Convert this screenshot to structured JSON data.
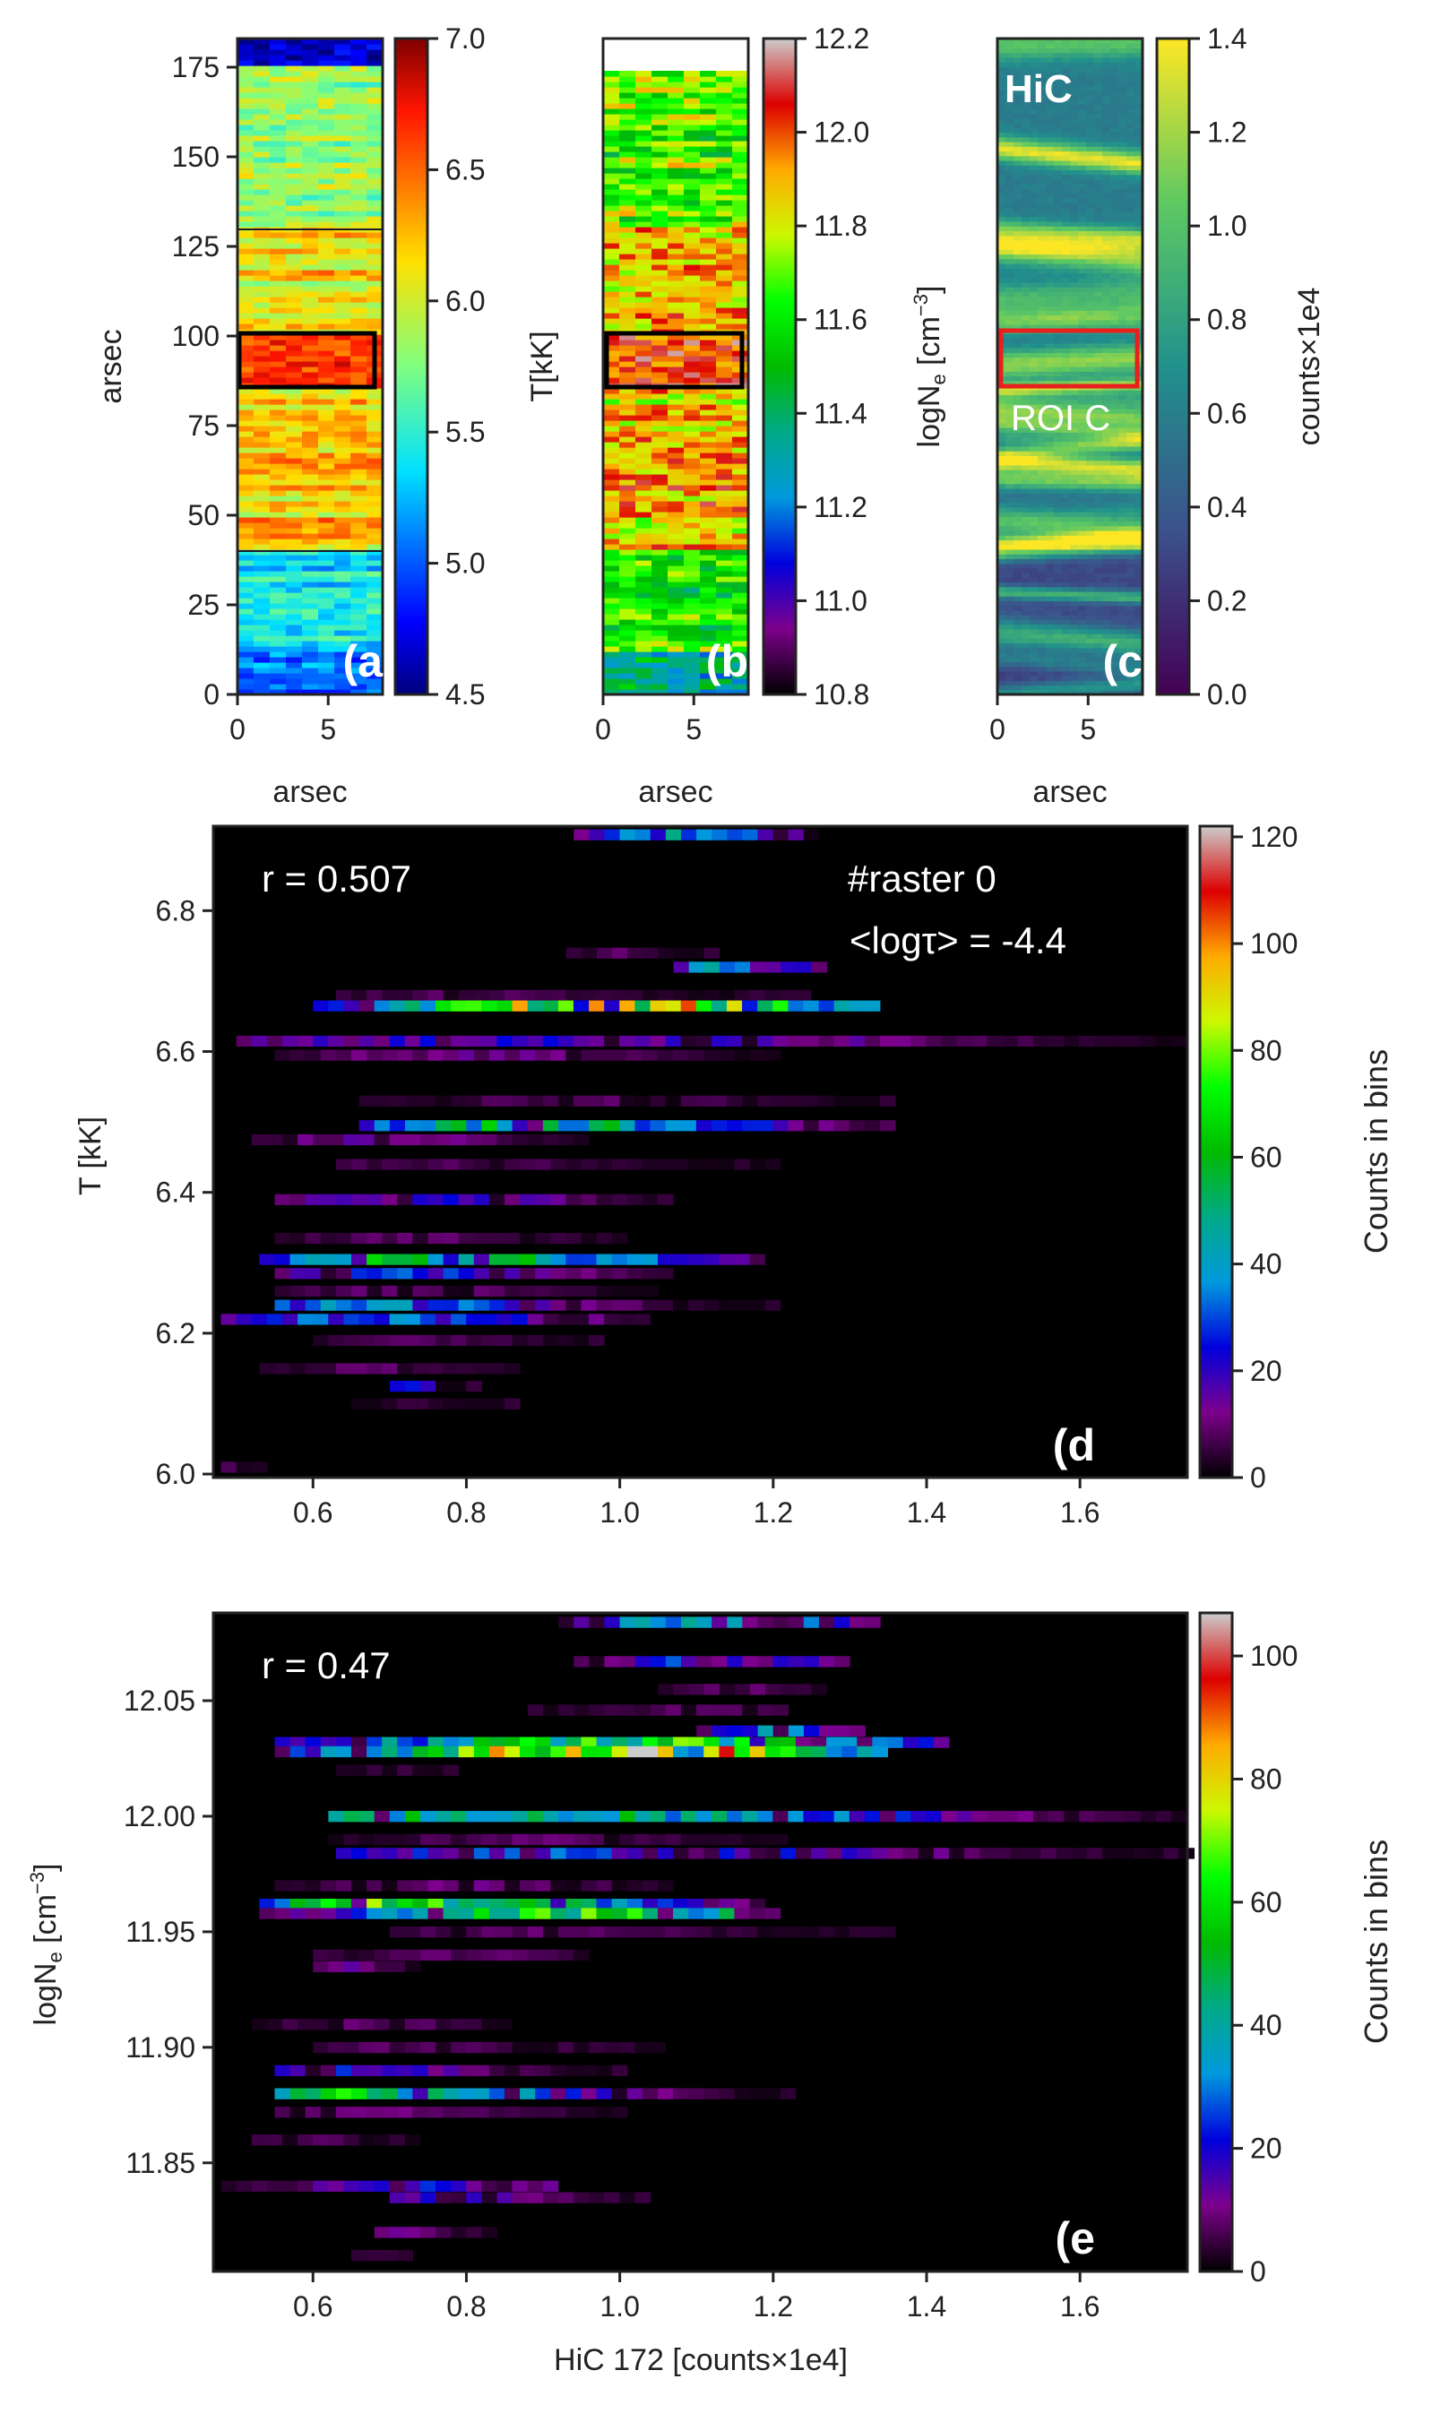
{
  "chart_data": [
    {
      "id": "a",
      "type": "heatmap",
      "panel_label": "(a",
      "xlabel": "arsec",
      "ylabel": "arsec",
      "colorbar_label": "T[kK]",
      "xlim": [
        0,
        8
      ],
      "ylim": [
        0,
        183
      ],
      "x_ticks": [
        0,
        5
      ],
      "y_ticks": [
        0,
        25,
        50,
        75,
        100,
        125,
        150,
        175
      ],
      "colorbar_range": [
        4.5,
        7.0
      ],
      "colorbar_ticks": [
        "4.5",
        "5.0",
        "5.5",
        "6.0",
        "6.5",
        "7.0"
      ],
      "colormap": "jet",
      "roi_box_y": [
        85,
        101
      ],
      "roi_box_color": "#000000",
      "horizontal_lines_y": [
        40,
        129
      ]
    },
    {
      "id": "b",
      "type": "heatmap",
      "panel_label": "(b",
      "xlabel": "arsec",
      "ylabel": "",
      "colorbar_label": "logN",
      "colorbar_label_sub": "e",
      "colorbar_label_unit": " [cm",
      "colorbar_label_sup": "−3",
      "colorbar_label_end": "]",
      "xlim": [
        0,
        8
      ],
      "ylim": [
        0,
        183
      ],
      "x_ticks": [
        0,
        5
      ],
      "colorbar_range": [
        10.8,
        12.2
      ],
      "colorbar_ticks": [
        "10.8",
        "11.0",
        "11.2",
        "11.4",
        "11.6",
        "11.8",
        "12.0",
        "12.2"
      ],
      "colormap": "nipy_spectral",
      "roi_box_y": [
        85,
        101
      ],
      "roi_box_color": "#000000",
      "data_top_y": 174
    },
    {
      "id": "c",
      "type": "heatmap",
      "panel_label": "(c",
      "inset_label": "HiC",
      "roi_label": "ROI C",
      "xlabel": "arsec",
      "ylabel": "",
      "colorbar_label": "counts×1e4",
      "xlim": [
        0,
        8
      ],
      "ylim": [
        0,
        183
      ],
      "x_ticks": [
        0,
        5
      ],
      "colorbar_range": [
        0.0,
        1.4
      ],
      "colorbar_ticks": [
        "0.0",
        "0.2",
        "0.4",
        "0.6",
        "0.8",
        "1.0",
        "1.2",
        "1.4"
      ],
      "colormap": "viridis",
      "roi_box_y": [
        85,
        101
      ],
      "roi_box_color": "#e8201e"
    },
    {
      "id": "d",
      "type": "heatmap",
      "panel_label": "(d",
      "annotations": [
        "r = 0.507",
        "#raster 0",
        "<logτ> = -4.4"
      ],
      "xlabel": "",
      "ylabel": "T [kK]",
      "colorbar_label": "Counts in bins",
      "xlim": [
        0.47,
        1.74
      ],
      "ylim": [
        5.995,
        6.92
      ],
      "x_ticks": [
        "0.6",
        "0.8",
        "1.0",
        "1.2",
        "1.4",
        "1.6"
      ],
      "y_ticks": [
        "6.0",
        "6.2",
        "6.4",
        "6.6",
        "6.8"
      ],
      "colorbar_range": [
        0,
        122
      ],
      "colorbar_ticks": [
        "0",
        "20",
        "40",
        "60",
        "80",
        "100",
        "120"
      ],
      "colormap": "nipy_spectral",
      "rows": [
        {
          "y": 6.908,
          "x0": 0.94,
          "x1": 1.25,
          "peak": 40,
          "center": 1.08
        },
        {
          "y": 6.74,
          "x0": 0.93,
          "x1": 1.11,
          "peak": 8,
          "center": 1.0
        },
        {
          "y": 6.72,
          "x0": 1.07,
          "x1": 1.25,
          "peak": 55,
          "center": 1.16
        },
        {
          "y": 6.68,
          "x0": 0.63,
          "x1": 1.23,
          "peak": 8,
          "center": 0.8
        },
        {
          "y": 6.665,
          "x0": 0.6,
          "x1": 1.33,
          "peak": 95,
          "center": 1.0
        },
        {
          "y": 6.615,
          "x0": 0.5,
          "x1": 1.73,
          "peak": 22,
          "center": 0.9
        },
        {
          "y": 6.595,
          "x0": 0.55,
          "x1": 1.2,
          "peak": 12,
          "center": 0.8
        },
        {
          "y": 6.53,
          "x0": 0.66,
          "x1": 1.35,
          "peak": 8,
          "center": 0.95
        },
        {
          "y": 6.495,
          "x0": 0.66,
          "x1": 1.35,
          "peak": 55,
          "center": 0.9
        },
        {
          "y": 6.475,
          "x0": 0.52,
          "x1": 0.95,
          "peak": 15,
          "center": 0.7
        },
        {
          "y": 6.44,
          "x0": 0.63,
          "x1": 1.2,
          "peak": 8,
          "center": 0.8
        },
        {
          "y": 6.39,
          "x0": 0.55,
          "x1": 1.05,
          "peak": 20,
          "center": 0.75
        },
        {
          "y": 6.335,
          "x0": 0.55,
          "x1": 1.0,
          "peak": 10,
          "center": 0.75
        },
        {
          "y": 6.305,
          "x0": 0.53,
          "x1": 1.17,
          "peak": 65,
          "center": 0.8
        },
        {
          "y": 6.285,
          "x0": 0.55,
          "x1": 1.05,
          "peak": 28,
          "center": 0.75
        },
        {
          "y": 6.26,
          "x0": 0.55,
          "x1": 1.03,
          "peak": 10,
          "center": 0.75
        },
        {
          "y": 6.24,
          "x0": 0.55,
          "x1": 1.2,
          "peak": 38,
          "center": 0.65
        },
        {
          "y": 6.22,
          "x0": 0.48,
          "x1": 1.03,
          "peak": 35,
          "center": 0.7
        },
        {
          "y": 6.19,
          "x0": 0.6,
          "x1": 0.97,
          "peak": 8,
          "center": 0.75
        },
        {
          "y": 6.15,
          "x0": 0.53,
          "x1": 0.85,
          "peak": 10,
          "center": 0.7
        },
        {
          "y": 6.125,
          "x0": 0.7,
          "x1": 0.8,
          "peak": 25,
          "center": 0.72
        },
        {
          "y": 6.1,
          "x0": 0.65,
          "x1": 0.85,
          "peak": 5,
          "center": 0.75
        },
        {
          "y": 6.01,
          "x0": 0.48,
          "x1": 0.53,
          "peak": 8,
          "center": 0.5
        }
      ]
    },
    {
      "id": "e",
      "type": "heatmap",
      "panel_label": "(e",
      "annotations": [
        "r = 0.47"
      ],
      "xlabel": "HiC 172 [counts×1e4]",
      "ylabel": "logN",
      "ylabel_sub": "e",
      "ylabel_unit": " [cm",
      "ylabel_sup": "−3",
      "ylabel_end": "]",
      "colorbar_label": "Counts in bins",
      "xlim": [
        0.47,
        1.74
      ],
      "ylim": [
        11.803,
        12.088
      ],
      "x_ticks": [
        "0.6",
        "0.8",
        "1.0",
        "1.2",
        "1.4",
        "1.6"
      ],
      "y_ticks": [
        "11.85",
        "11.90",
        "11.95",
        "12.00",
        "12.05"
      ],
      "colorbar_range": [
        0,
        107
      ],
      "colorbar_ticks": [
        "0",
        "20",
        "40",
        "60",
        "80",
        "100"
      ],
      "colormap": "nipy_spectral",
      "rows": [
        {
          "y": 12.084,
          "x0": 0.92,
          "x1": 1.33,
          "peak": 45,
          "center": 1.12
        },
        {
          "y": 12.067,
          "x0": 0.94,
          "x1": 1.29,
          "peak": 30,
          "center": 1.15
        },
        {
          "y": 12.055,
          "x0": 1.05,
          "x1": 1.25,
          "peak": 8,
          "center": 1.15
        },
        {
          "y": 12.046,
          "x0": 0.88,
          "x1": 1.2,
          "peak": 8,
          "center": 1.1
        },
        {
          "y": 12.037,
          "x0": 1.1,
          "x1": 1.3,
          "peak": 35,
          "center": 1.2
        },
        {
          "y": 12.032,
          "x0": 0.55,
          "x1": 1.42,
          "peak": 60,
          "center": 1.0
        },
        {
          "y": 12.028,
          "x0": 0.55,
          "x1": 1.33,
          "peak": 95,
          "center": 1.0
        },
        {
          "y": 12.02,
          "x0": 0.63,
          "x1": 0.77,
          "peak": 5,
          "center": 0.7
        },
        {
          "y": 12.0,
          "x0": 0.62,
          "x1": 1.73,
          "peak": 50,
          "center": 0.9
        },
        {
          "y": 11.99,
          "x0": 0.62,
          "x1": 1.2,
          "peak": 8,
          "center": 0.9
        },
        {
          "y": 11.984,
          "x0": 0.63,
          "x1": 1.73,
          "peak": 25,
          "center": 0.95
        },
        {
          "y": 11.97,
          "x0": 0.55,
          "x1": 1.05,
          "peak": 10,
          "center": 0.8
        },
        {
          "y": 11.962,
          "x0": 0.53,
          "x1": 1.18,
          "peak": 65,
          "center": 0.75
        },
        {
          "y": 11.958,
          "x0": 0.53,
          "x1": 1.2,
          "peak": 58,
          "center": 0.95
        },
        {
          "y": 11.95,
          "x0": 0.7,
          "x1": 1.35,
          "peak": 8,
          "center": 0.9
        },
        {
          "y": 11.94,
          "x0": 0.6,
          "x1": 0.95,
          "peak": 8,
          "center": 0.8
        },
        {
          "y": 11.935,
          "x0": 0.6,
          "x1": 0.72,
          "peak": 15,
          "center": 0.65
        },
        {
          "y": 11.91,
          "x0": 0.52,
          "x1": 0.85,
          "peak": 8,
          "center": 0.68
        },
        {
          "y": 11.9,
          "x0": 0.6,
          "x1": 1.05,
          "peak": 8,
          "center": 0.7
        },
        {
          "y": 11.89,
          "x0": 0.55,
          "x1": 1.0,
          "peak": 20,
          "center": 0.65
        },
        {
          "y": 11.88,
          "x0": 0.55,
          "x1": 1.22,
          "peak": 55,
          "center": 0.65
        },
        {
          "y": 11.872,
          "x0": 0.55,
          "x1": 1.0,
          "peak": 10,
          "center": 0.7
        },
        {
          "y": 11.86,
          "x0": 0.52,
          "x1": 0.72,
          "peak": 8,
          "center": 0.6
        },
        {
          "y": 11.84,
          "x0": 0.48,
          "x1": 0.9,
          "peak": 20,
          "center": 0.75
        },
        {
          "y": 11.835,
          "x0": 0.7,
          "x1": 1.03,
          "peak": 18,
          "center": 0.78
        },
        {
          "y": 11.82,
          "x0": 0.68,
          "x1": 0.82,
          "peak": 10,
          "center": 0.72
        },
        {
          "y": 11.81,
          "x0": 0.65,
          "x1": 0.72,
          "peak": 6,
          "center": 0.68
        }
      ]
    }
  ]
}
